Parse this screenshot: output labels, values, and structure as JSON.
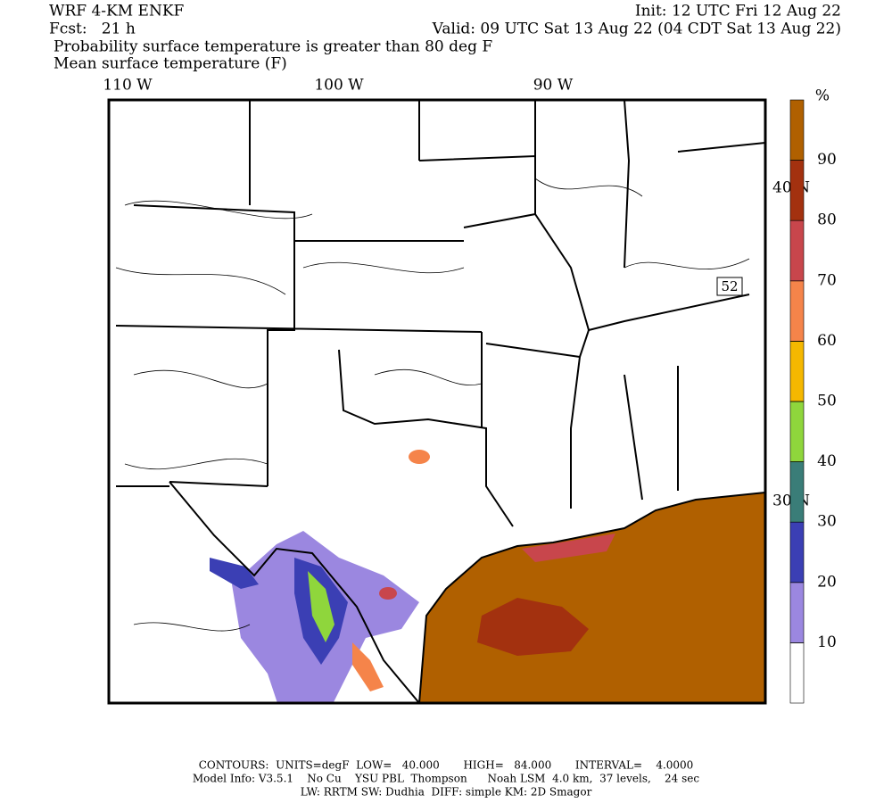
{
  "header": {
    "model": "WRF 4-KM ENKF",
    "forecast": "Fcst:   21 h",
    "init": "Init: 12 UTC Fri 12 Aug 22",
    "valid": "Valid: 09 UTC Sat 13 Aug 22 (04 CDT Sat 13 Aug 22)",
    "field1": "Probability surface temperature is greater than 80 deg F",
    "field2": "Mean surface temperature (F)"
  },
  "map": {
    "lon_labels": [
      "110 W",
      "100 W",
      "90 W"
    ],
    "lat_labels": [
      "40 N",
      "30 N"
    ],
    "shield": "52"
  },
  "colorbar": {
    "unit": "%",
    "lim": [
      0,
      100
    ],
    "ticks": [
      10,
      20,
      30,
      40,
      50,
      60,
      70,
      80,
      90
    ],
    "colors": [
      "#ffffff",
      "#9b87e0",
      "#3b3fb4",
      "#3a7d78",
      "#8fd63c",
      "#f5b800",
      "#f5844a",
      "#c8464c",
      "#a3310f",
      "#b06000"
    ]
  },
  "footer": [
    "CONTOURS:  UNITS=degF  LOW=   40.000       HIGH=   84.000       INTERVAL=    4.0000",
    "Model Info: V3.5.1    No Cu    YSU PBL  Thompson      Noah LSM  4.0 km,  37 levels,    24 sec",
    "LW: RRTM SW: Dudhia  DIFF: simple KM: 2D Smagor"
  ]
}
